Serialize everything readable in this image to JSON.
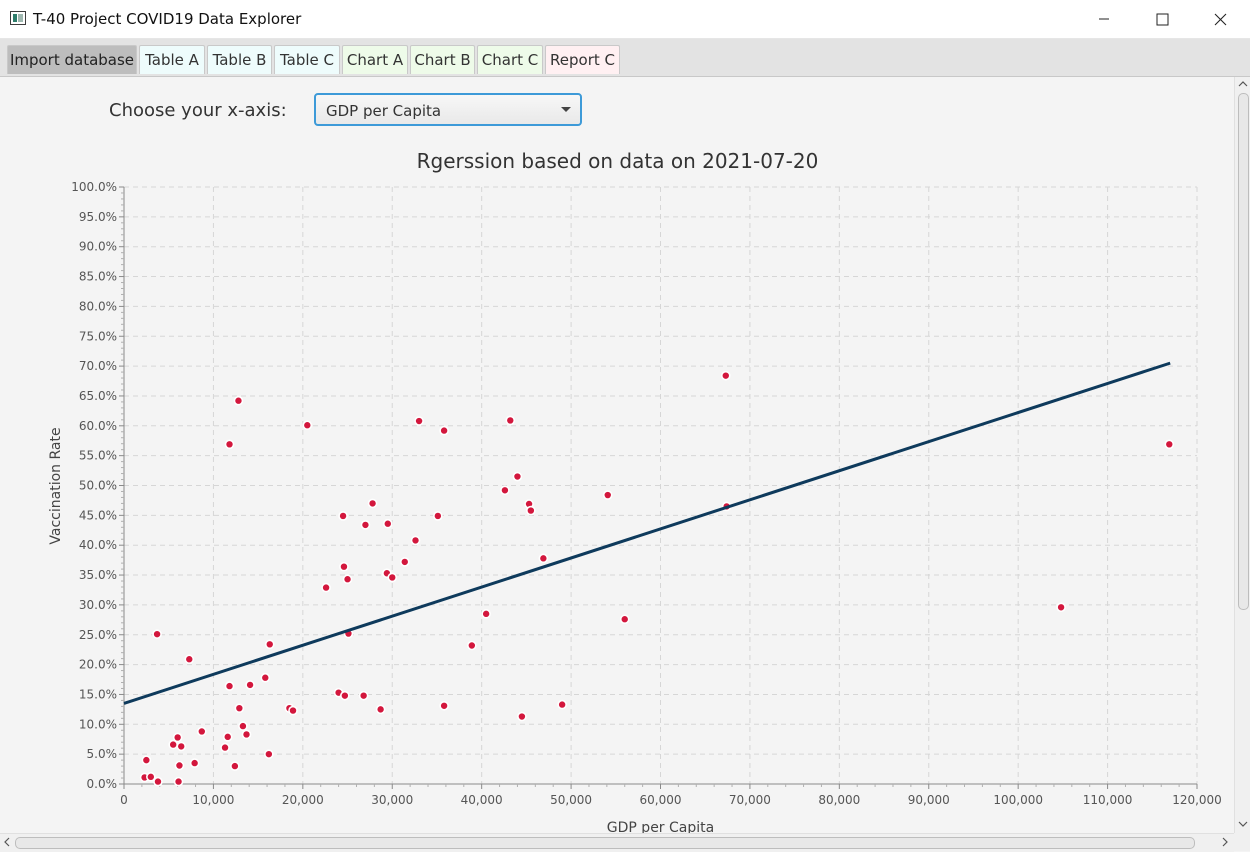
{
  "window": {
    "title": "T-40 Project COVID19 Data Explorer"
  },
  "tabs": [
    {
      "label": "Import database",
      "style": "active"
    },
    {
      "label": "Table A",
      "style": "cyan"
    },
    {
      "label": "Table B",
      "style": "cyan"
    },
    {
      "label": "Table C",
      "style": "cyan"
    },
    {
      "label": "Chart A",
      "style": "green"
    },
    {
      "label": "Chart B",
      "style": "green"
    },
    {
      "label": "Chart C",
      "style": "green"
    },
    {
      "label": "Report C",
      "style": "pink"
    }
  ],
  "controls": {
    "xaxis_label": "Choose your x-axis:",
    "xaxis_selected": "GDP per Capita"
  },
  "colors": {
    "point": "#d3173d",
    "regression_line": "#0e3a5c",
    "grid": "#d6d6d6",
    "accent": "#3d9ad8"
  },
  "chart_data": {
    "type": "scatter",
    "title": "Rgerssion based on data on 2021-07-20",
    "xlabel": "GDP per Capita",
    "ylabel": "Vaccination Rate",
    "xlim": [
      0,
      120000
    ],
    "ylim": [
      0,
      100
    ],
    "x_ticks": [
      "0",
      "10,000",
      "20,000",
      "30,000",
      "40,000",
      "50,000",
      "60,000",
      "70,000",
      "80,000",
      "90,000",
      "100,000",
      "110,000",
      "120,000"
    ],
    "y_ticks": [
      "0.0%",
      "5.0%",
      "10.0%",
      "15.0%",
      "20.0%",
      "25.0%",
      "30.0%",
      "35.0%",
      "40.0%",
      "45.0%",
      "50.0%",
      "55.0%",
      "60.0%",
      "65.0%",
      "70.0%",
      "75.0%",
      "80.0%",
      "85.0%",
      "90.0%",
      "95.0%",
      "100.0%"
    ],
    "grid": true,
    "regression": {
      "x": [
        0,
        117000
      ],
      "y": [
        13.5,
        70.5
      ]
    },
    "points": [
      [
        12800,
        64.2
      ],
      [
        11800,
        56.9
      ],
      [
        20500,
        60.1
      ],
      [
        33000,
        60.8
      ],
      [
        35800,
        59.2
      ],
      [
        43200,
        60.9
      ],
      [
        67300,
        68.4
      ],
      [
        116900,
        56.9
      ],
      [
        44000,
        51.5
      ],
      [
        42600,
        49.2
      ],
      [
        54100,
        48.4
      ],
      [
        45300,
        46.9
      ],
      [
        45500,
        45.8
      ],
      [
        67400,
        46.5
      ],
      [
        27800,
        47.0
      ],
      [
        24500,
        44.9
      ],
      [
        27000,
        43.4
      ],
      [
        29500,
        43.6
      ],
      [
        35100,
        44.9
      ],
      [
        32600,
        40.8
      ],
      [
        31400,
        37.2
      ],
      [
        46900,
        37.8
      ],
      [
        24600,
        36.4
      ],
      [
        25000,
        34.3
      ],
      [
        29400,
        35.3
      ],
      [
        30000,
        34.6
      ],
      [
        22600,
        32.9
      ],
      [
        104800,
        29.6
      ],
      [
        40500,
        28.5
      ],
      [
        56000,
        27.6
      ],
      [
        3700,
        25.1
      ],
      [
        25100,
        25.2
      ],
      [
        16300,
        23.4
      ],
      [
        38900,
        23.2
      ],
      [
        7300,
        20.9
      ],
      [
        15800,
        17.8
      ],
      [
        14100,
        16.6
      ],
      [
        11800,
        16.4
      ],
      [
        24000,
        15.3
      ],
      [
        24700,
        14.8
      ],
      [
        26800,
        14.8
      ],
      [
        35800,
        13.1
      ],
      [
        49000,
        13.3
      ],
      [
        18500,
        12.7
      ],
      [
        18900,
        12.3
      ],
      [
        12900,
        12.7
      ],
      [
        28700,
        12.5
      ],
      [
        44500,
        11.3
      ],
      [
        13300,
        9.7
      ],
      [
        13700,
        8.3
      ],
      [
        8700,
        8.8
      ],
      [
        11600,
        7.9
      ],
      [
        6000,
        7.8
      ],
      [
        5500,
        6.6
      ],
      [
        6400,
        6.3
      ],
      [
        11300,
        6.1
      ],
      [
        16200,
        5.0
      ],
      [
        2500,
        4.0
      ],
      [
        6200,
        3.1
      ],
      [
        7900,
        3.5
      ],
      [
        12400,
        3.0
      ],
      [
        2300,
        1.1
      ],
      [
        3000,
        1.2
      ],
      [
        3800,
        0.4
      ],
      [
        6100,
        0.4
      ]
    ]
  }
}
